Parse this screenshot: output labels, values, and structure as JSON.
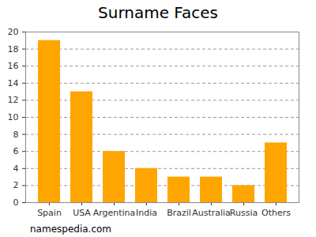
{
  "chart_data": {
    "type": "bar",
    "title": "Surname Faces",
    "categories": [
      "Spain",
      "USA",
      "Argentina",
      "India",
      "Brazil",
      "Australia",
      "Russia",
      "Others"
    ],
    "values": [
      19,
      13,
      6,
      4,
      3,
      3,
      2,
      7
    ],
    "color": "#ffa500",
    "ylim": [
      0,
      20
    ],
    "yticks": [
      0,
      2,
      4,
      6,
      8,
      10,
      12,
      14,
      16,
      18,
      20
    ],
    "grid": true,
    "caption": "namespedia.com"
  }
}
